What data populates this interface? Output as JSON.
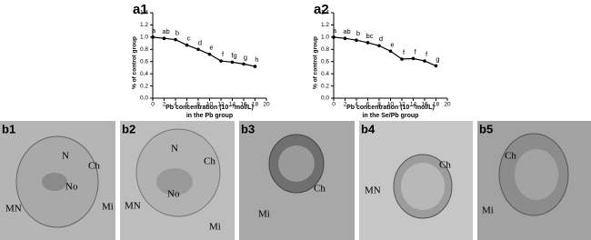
{
  "chart_data": [
    {
      "type": "line",
      "panel": "a1",
      "y_label": "% of control group",
      "x_label": "Pb concentration (10⁻⁷mol/L)",
      "x_label_2": "in the Pb group",
      "x": [
        0,
        2,
        4,
        6,
        8,
        10,
        12,
        14,
        16,
        18
      ],
      "series": [
        {
          "color": "#000000",
          "values": [
            1.0,
            0.98,
            0.96,
            0.87,
            0.8,
            0.72,
            0.61,
            0.59,
            0.56,
            0.52
          ]
        }
      ],
      "letters": [
        "a",
        "ab",
        "b",
        "c",
        "d",
        "e",
        "f",
        "fg",
        "g",
        "h"
      ],
      "xlim": [
        0,
        20
      ],
      "xticks": [
        0,
        2,
        4,
        6,
        8,
        10,
        12,
        14,
        16,
        18,
        20
      ],
      "ylim": [
        0,
        1.4
      ],
      "yticks": [
        {
          "value": 0,
          "label": "0.0"
        },
        0.2,
        0.4,
        0.6,
        0.8,
        {
          "value": 1,
          "label": "1.0"
        },
        1.2,
        1.4
      ]
    },
    {
      "type": "line",
      "panel": "a2",
      "y_label": "% of control group",
      "x_label": "Pb concentration (10⁻⁷mol/L)",
      "x_label_2": "in the Se/Pb group",
      "x": [
        0,
        2,
        4,
        6,
        8,
        10,
        12,
        14,
        16,
        18
      ],
      "series": [
        {
          "color": "#000000",
          "values": [
            1.0,
            0.98,
            0.95,
            0.91,
            0.86,
            0.77,
            0.64,
            0.65,
            0.61,
            0.53
          ]
        }
      ],
      "letters": [
        "a",
        "ab",
        "b",
        "bc",
        "d",
        "e",
        "f",
        "f",
        "f",
        "g"
      ],
      "xlim": [
        0,
        20
      ],
      "xticks": [
        0,
        2,
        4,
        6,
        8,
        10,
        12,
        14,
        16,
        18,
        20
      ],
      "ylim": [
        0,
        1.4
      ],
      "yticks": [
        {
          "value": 0,
          "label": "0.0"
        },
        0.2,
        0.4,
        0.6,
        0.8,
        {
          "value": 1,
          "label": "1.0"
        },
        1.2,
        1.4
      ]
    }
  ],
  "micrographs": [
    {
      "panel": "b1",
      "labels": [
        "N",
        "Ch",
        "No",
        "MN",
        "Mi"
      ]
    },
    {
      "panel": "b2",
      "labels": [
        "N",
        "Ch",
        "No",
        "MN",
        "Mi"
      ]
    },
    {
      "panel": "b3",
      "labels": [
        "Ch",
        "Mi"
      ]
    },
    {
      "panel": "b4",
      "labels": [
        "Ch",
        "MN"
      ]
    },
    {
      "panel": "b5",
      "labels": [
        "Ch",
        "Mi"
      ]
    }
  ]
}
